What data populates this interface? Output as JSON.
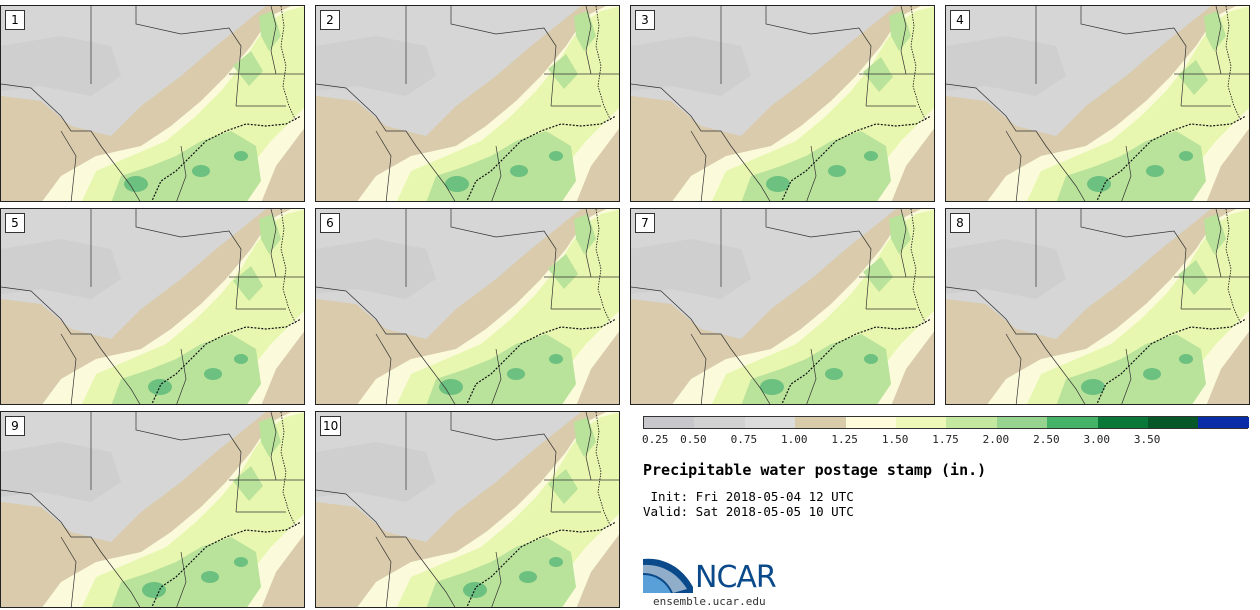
{
  "panels": [
    {
      "label": "1"
    },
    {
      "label": "2"
    },
    {
      "label": "3"
    },
    {
      "label": "4"
    },
    {
      "label": "5"
    },
    {
      "label": "6"
    },
    {
      "label": "7"
    },
    {
      "label": "8"
    },
    {
      "label": "9"
    },
    {
      "label": "10"
    }
  ],
  "colorbar": {
    "colors": [
      "#c8c8cc",
      "#d2d2d2",
      "#dcdcdc",
      "#d8ccaa",
      "#fffcdc",
      "#eef8b8",
      "#c4e8a0",
      "#96d490",
      "#46b468",
      "#0a7838",
      "#065828",
      "#0a2ca8"
    ],
    "ticks": [
      "0.25",
      "0.50",
      "0.75",
      "1.00",
      "1.25",
      "1.50",
      "1.75",
      "2.00",
      "2.50",
      "3.00",
      "3.50"
    ]
  },
  "title": "Precipitable water postage stamp (in.)",
  "init": " Init: Fri 2018-05-04 12 UTC",
  "valid": "Valid: Sat 2018-05-05 10 UTC",
  "logo": {
    "brand": "NCAR",
    "site": "ensemble.ucar.edu"
  },
  "map_colors": {
    "dry": "#d6d6d6",
    "darkdry": "#c9c9cc",
    "tan": "#d9cbab",
    "light": "#fbfbdc",
    "lime": "#e8f7b0",
    "green": "#b9e29a",
    "dkgreen": "#6cc080",
    "border": "#333333"
  }
}
